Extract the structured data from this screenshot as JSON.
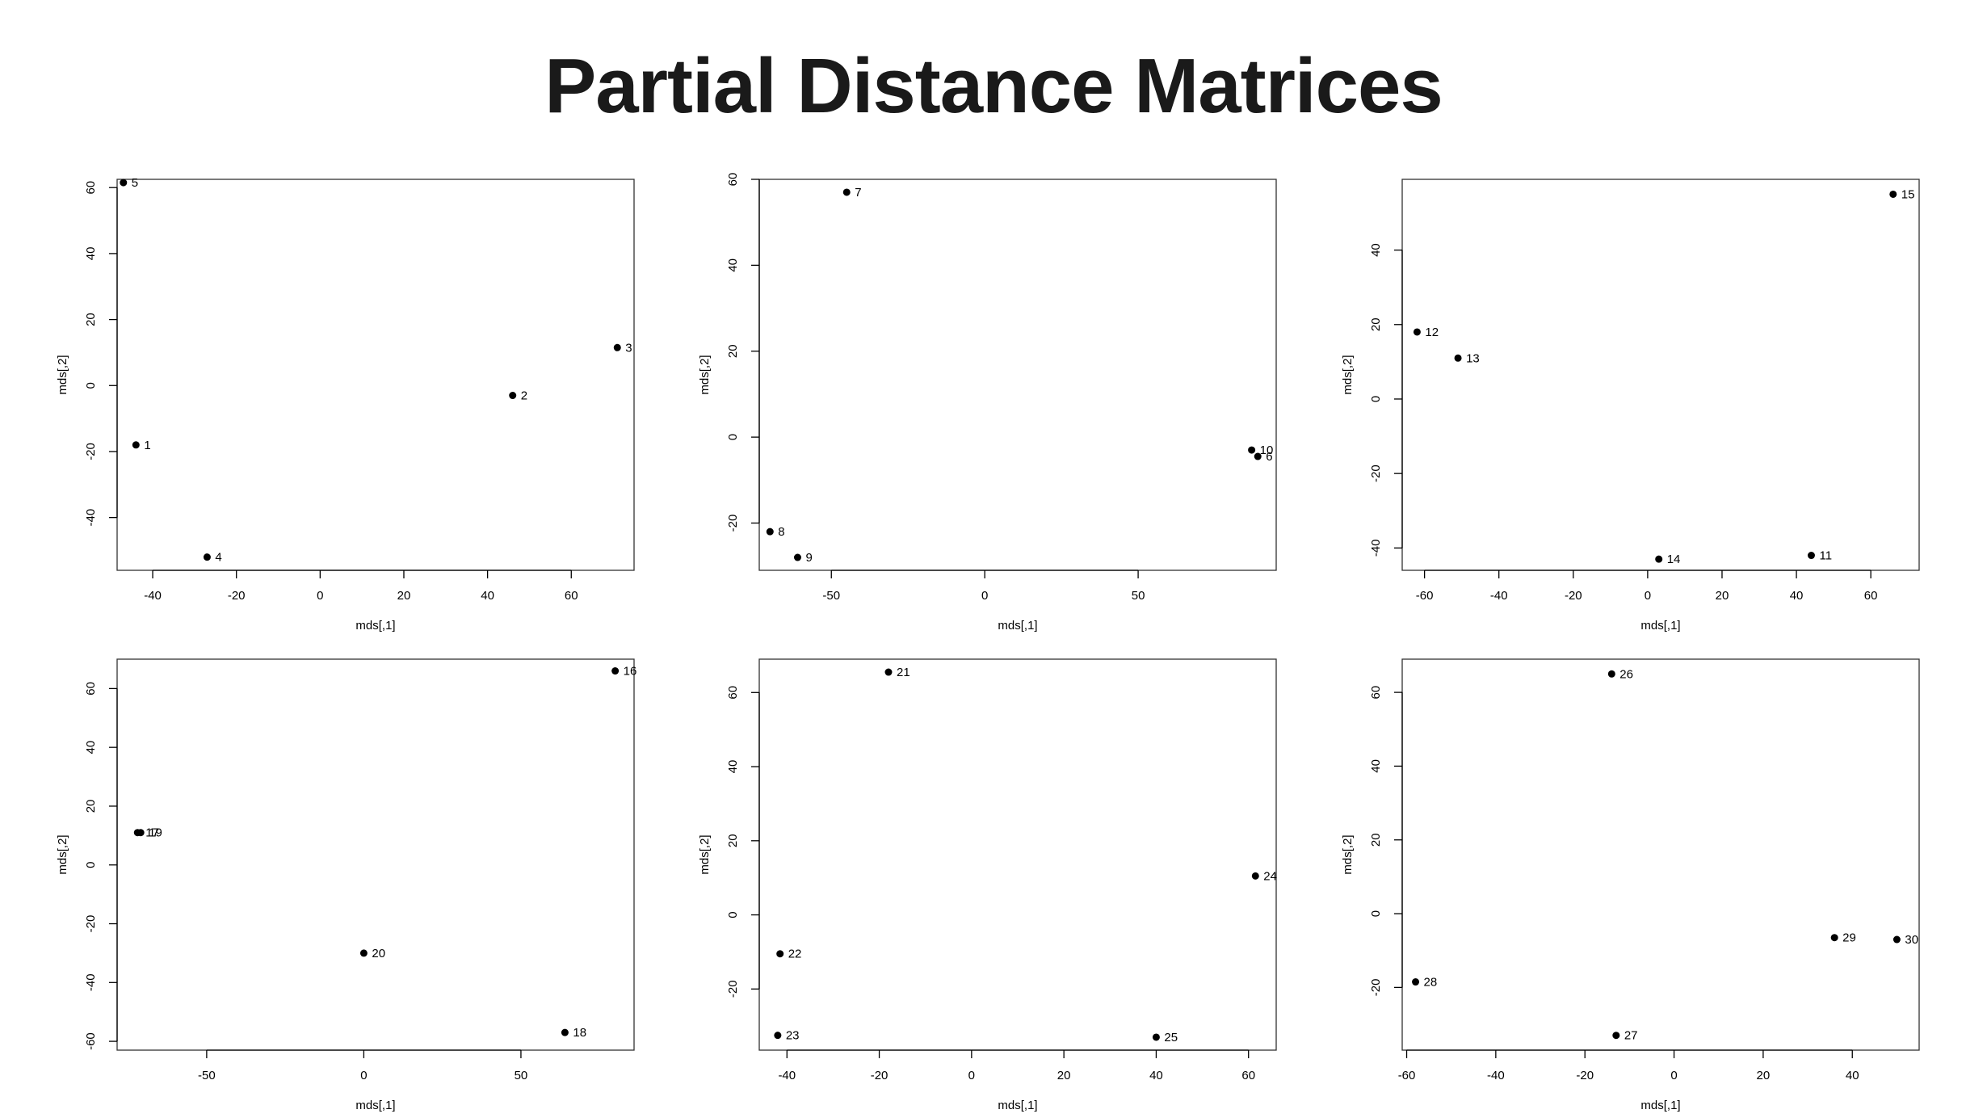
{
  "title": "Partial Distance Matrices",
  "chart_data": [
    {
      "type": "scatter",
      "xlabel": "mds[,1]",
      "ylabel": "mds[,2]",
      "xlim": [
        -48.5,
        75
      ],
      "ylim": [
        -56,
        62.5
      ],
      "xticks": [
        -40,
        -20,
        0,
        20,
        40,
        60
      ],
      "yticks": [
        -40,
        -20,
        0,
        20,
        40,
        60
      ],
      "points": [
        {
          "x": -47,
          "y": 61.5,
          "label": "5"
        },
        {
          "x": -44,
          "y": -18,
          "label": "1"
        },
        {
          "x": -27,
          "y": -52,
          "label": "4"
        },
        {
          "x": 46,
          "y": -3,
          "label": "2"
        },
        {
          "x": 71,
          "y": 11.5,
          "label": "3"
        }
      ]
    },
    {
      "type": "scatter",
      "xlabel": "mds[,1]",
      "ylabel": "mds[,2]",
      "xlim": [
        -73.5,
        95
      ],
      "ylim": [
        -31,
        60
      ],
      "xticks": [
        -50,
        0,
        50
      ],
      "yticks": [
        -20,
        0,
        20,
        40,
        60
      ],
      "points": [
        {
          "x": -45,
          "y": 57,
          "label": "7"
        },
        {
          "x": 87,
          "y": -3,
          "label": "10"
        },
        {
          "x": 89,
          "y": -4.5,
          "label": "6"
        },
        {
          "x": -70,
          "y": -22,
          "label": "8"
        },
        {
          "x": -61,
          "y": -28,
          "label": "9"
        }
      ]
    },
    {
      "type": "scatter",
      "xlabel": "mds[,1]",
      "ylabel": "mds[,2]",
      "xlim": [
        -66,
        73
      ],
      "ylim": [
        -46,
        59
      ],
      "xticks": [
        -60,
        -40,
        -20,
        0,
        20,
        40,
        60
      ],
      "yticks": [
        -40,
        -20,
        0,
        20,
        40
      ],
      "points": [
        {
          "x": 66,
          "y": 55,
          "label": "15"
        },
        {
          "x": -62,
          "y": 18,
          "label": "12"
        },
        {
          "x": -51,
          "y": 11,
          "label": "13"
        },
        {
          "x": 3,
          "y": -43,
          "label": "14"
        },
        {
          "x": 44,
          "y": -42,
          "label": "11"
        }
      ]
    },
    {
      "type": "scatter",
      "xlabel": "mds[,1]",
      "ylabel": "mds[,2]",
      "xlim": [
        -78.5,
        86
      ],
      "ylim": [
        -63,
        70
      ],
      "xticks": [
        -50,
        0,
        50
      ],
      "yticks": [
        -60,
        -40,
        -20,
        0,
        20,
        40,
        60
      ],
      "points": [
        {
          "x": 80,
          "y": 66,
          "label": "16"
        },
        {
          "x": -72,
          "y": 11,
          "label": "17"
        },
        {
          "x": -71,
          "y": 11,
          "label": "19"
        },
        {
          "x": 0,
          "y": -30,
          "label": "20"
        },
        {
          "x": 64,
          "y": -57,
          "label": "18"
        }
      ]
    },
    {
      "type": "scatter",
      "xlabel": "mds[,1]",
      "ylabel": "mds[,2]",
      "xlim": [
        -46,
        66
      ],
      "ylim": [
        -36.5,
        69
      ],
      "xticks": [
        -40,
        -20,
        0,
        20,
        40,
        60
      ],
      "yticks": [
        -20,
        0,
        20,
        40,
        60
      ],
      "points": [
        {
          "x": -18,
          "y": 65.5,
          "label": "21"
        },
        {
          "x": 61.5,
          "y": 10.5,
          "label": "24"
        },
        {
          "x": -41.5,
          "y": -10.5,
          "label": "22"
        },
        {
          "x": -42,
          "y": -32.5,
          "label": "23"
        },
        {
          "x": 40,
          "y": -33,
          "label": "25"
        }
      ]
    },
    {
      "type": "scatter",
      "xlabel": "mds[,1]",
      "ylabel": "mds[,2]",
      "xlim": [
        -61,
        55
      ],
      "ylim": [
        -37,
        69
      ],
      "xticks": [
        -60,
        -40,
        -20,
        0,
        20,
        40
      ],
      "yticks": [
        -20,
        0,
        20,
        40,
        60
      ],
      "points": [
        {
          "x": -14,
          "y": 65,
          "label": "26"
        },
        {
          "x": 36,
          "y": -6.5,
          "label": "29"
        },
        {
          "x": 50,
          "y": -7,
          "label": "30"
        },
        {
          "x": -58,
          "y": -18.5,
          "label": "28"
        },
        {
          "x": -13,
          "y": -33,
          "label": "27"
        }
      ]
    }
  ]
}
